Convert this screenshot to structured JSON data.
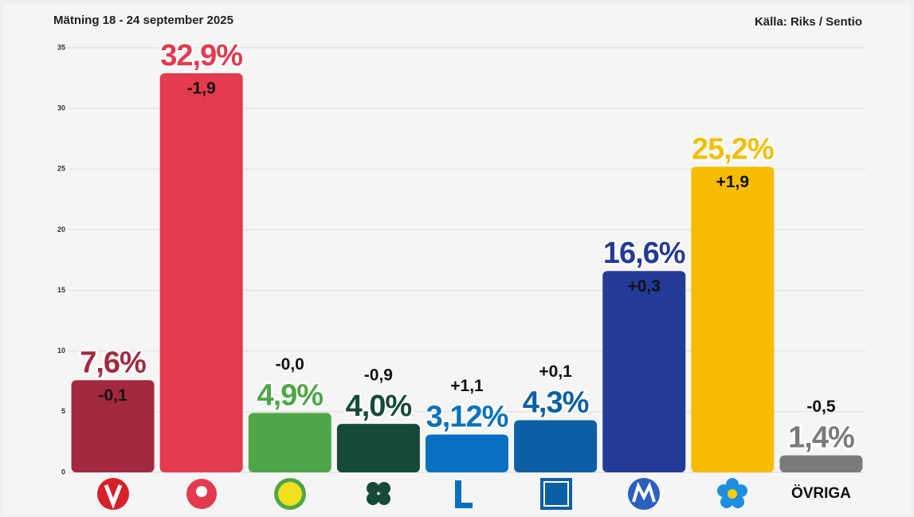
{
  "chart_data": {
    "type": "bar",
    "title": "Mätning  18 - 24 september 2025",
    "source": "Källa: Riks / Sentio",
    "categories": [
      null,
      null,
      null,
      null,
      null,
      null,
      null,
      null,
      "ÖVRIGA"
    ],
    "values": [
      7.6,
      32.9,
      4.9,
      4.0,
      3.12,
      4.3,
      16.6,
      25.2,
      1.4
    ],
    "value_labels": [
      "7,6%",
      "32,9%",
      "4,9%",
      "4,0%",
      "3,12%",
      "4,3%",
      "16,6%",
      "25,2%",
      "1,4%"
    ],
    "changes": [
      -0.1,
      -1.9,
      0,
      -0.9,
      1.1,
      0.1,
      0.3,
      1.9,
      -0.5
    ],
    "change_labels": [
      "-0,1",
      "-1,9",
      "-0,0",
      "-0,9",
      "+1,1",
      "+0,1",
      "+0,3",
      "+1,9",
      "-0,5"
    ],
    "colors": [
      "#a3293f",
      "#e43a4f",
      "#4fa648",
      "#17493a",
      "#0870c0",
      "#0b5fa5",
      "#243a97",
      "#f6bd00",
      "#7a7a7a"
    ],
    "ylim": [
      0,
      35
    ],
    "yticks": [
      0,
      5,
      10,
      15,
      20,
      25,
      30,
      35
    ],
    "grid": true
  }
}
